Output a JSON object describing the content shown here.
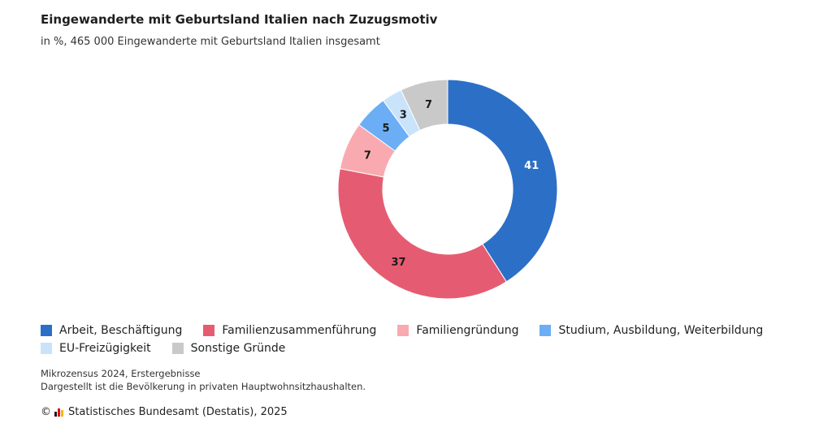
{
  "chart_data": {
    "type": "pie",
    "title": "Eingewanderte mit Geburtsland Italien nach Zuzugsmotiv",
    "subtitle": "in %,  465 000 Eingewanderte mit Geburtsland Italien insgesamt",
    "categories": [
      "Arbeit, Beschäftigung",
      "Familienzusammenführung",
      "Familiengründung",
      "Studium, Ausbildung, Weiterbildung",
      "EU-Freizügigkeit",
      "Sonstige Gründe"
    ],
    "values": [
      41,
      37,
      7,
      5,
      3,
      7
    ],
    "labels": [
      "41",
      "37",
      "7",
      "5",
      "3",
      "7"
    ],
    "colors": [
      "#2c6fc6",
      "#e55c72",
      "#f9aab0",
      "#6baef5",
      "#c9e3fb",
      "#c9c9c9"
    ],
    "label_colors": [
      "#ffffff",
      "#1a1a1a",
      "#1a1a1a",
      "#1a1a1a",
      "#1a1a1a",
      "#1a1a1a"
    ],
    "legend_position": "bottom-left"
  },
  "notes": {
    "line1": "Mikrozensus 2024, Erstergebnisse",
    "line2": "Dargestellt ist die Bevölkerung in privaten Hauptwohnsitzhaushalten."
  },
  "footer": {
    "copyright_symbol": "©",
    "text": "Statistisches Bundesamt (Destatis), 2025"
  }
}
